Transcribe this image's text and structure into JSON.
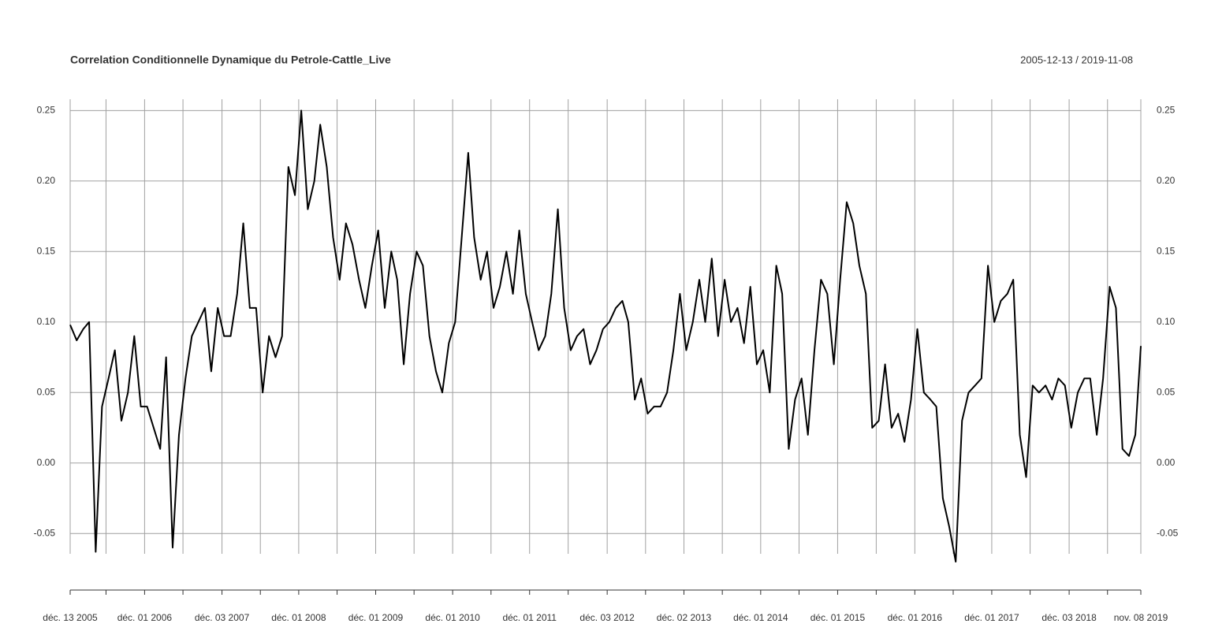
{
  "chart_data": {
    "type": "line",
    "title": "Correlation Conditionnelle Dynamique du Petrole-Cattle_Live",
    "subtitle": "2005-12-13 / 2019-11-08",
    "color": "#000000",
    "grid": true,
    "xlim": [
      "2005-12-13",
      "2019-11-08"
    ],
    "ylim": [
      -0.075,
      0.258
    ],
    "yticks": [
      -0.05,
      {
        "value": 0,
        "label": "0.00"
      },
      0.05,
      {
        "value": 0.1,
        "label": "0.10"
      },
      0.15,
      {
        "value": 0.2,
        "label": "0.20"
      },
      0.25
    ],
    "xticks": [
      {
        "value": "2005-12-13",
        "label": "déc. 13 2005"
      },
      {
        "value": "2006-12-01",
        "label": "déc. 01 2006"
      },
      {
        "value": "2007-12-03",
        "label": "déc. 03 2007"
      },
      {
        "value": "2008-12-01",
        "label": "déc. 01 2008"
      },
      {
        "value": "2009-12-01",
        "label": "déc. 01 2009"
      },
      {
        "value": "2010-12-01",
        "label": "déc. 01 2010"
      },
      {
        "value": "2011-12-01",
        "label": "déc. 01 2011"
      },
      {
        "value": "2012-12-03",
        "label": "déc. 03 2012"
      },
      {
        "value": "2013-12-02",
        "label": "déc. 02 2013"
      },
      {
        "value": "2014-12-01",
        "label": "déc. 01 2014"
      },
      {
        "value": "2015-12-01",
        "label": "déc. 01 2015"
      },
      {
        "value": "2016-12-01",
        "label": "déc. 01 2016"
      },
      {
        "value": "2017-12-01",
        "label": "déc. 01 2017"
      },
      {
        "value": "2018-12-03",
        "label": "déc. 03 2018"
      },
      {
        "value": "2019-11-08",
        "label": "nov. 08 2019"
      }
    ],
    "xticks_minor": [
      "2006-06-01",
      "2007-06-01",
      "2008-06-02",
      "2009-06-01",
      "2010-06-01",
      "2011-06-01",
      "2012-06-01",
      "2013-06-03",
      "2014-06-02",
      "2015-06-01",
      "2016-06-01",
      "2017-06-01",
      "2018-06-01",
      "2019-06-03"
    ],
    "x": [
      "2005-12-13",
      "2006-01-13",
      "2006-02-13",
      "2006-03-13",
      "2006-04-13",
      "2006-05-13",
      "2006-06-13",
      "2006-07-13",
      "2006-08-13",
      "2006-09-13",
      "2006-10-13",
      "2006-11-13",
      "2006-12-13",
      "2007-01-13",
      "2007-02-13",
      "2007-03-13",
      "2007-04-13",
      "2007-05-13",
      "2007-06-13",
      "2007-07-13",
      "2007-08-13",
      "2007-09-13",
      "2007-10-13",
      "2007-11-13",
      "2007-12-13",
      "2008-01-13",
      "2008-02-13",
      "2008-03-13",
      "2008-04-13",
      "2008-05-13",
      "2008-06-13",
      "2008-07-13",
      "2008-08-13",
      "2008-09-13",
      "2008-10-13",
      "2008-11-13",
      "2008-12-13",
      "2009-01-13",
      "2009-02-13",
      "2009-03-13",
      "2009-04-13",
      "2009-05-13",
      "2009-06-13",
      "2009-07-13",
      "2009-08-13",
      "2009-09-13",
      "2009-10-13",
      "2009-11-13",
      "2009-12-13",
      "2010-01-13",
      "2010-02-13",
      "2010-03-13",
      "2010-04-13",
      "2010-05-13",
      "2010-06-13",
      "2010-07-13",
      "2010-08-13",
      "2010-09-13",
      "2010-10-13",
      "2010-11-13",
      "2010-12-13",
      "2011-01-13",
      "2011-02-13",
      "2011-03-13",
      "2011-04-13",
      "2011-05-13",
      "2011-06-13",
      "2011-07-13",
      "2011-08-13",
      "2011-09-13",
      "2011-10-13",
      "2011-11-13",
      "2011-12-13",
      "2012-01-13",
      "2012-02-13",
      "2012-03-13",
      "2012-04-13",
      "2012-05-13",
      "2012-06-13",
      "2012-07-13",
      "2012-08-13",
      "2012-09-13",
      "2012-10-13",
      "2012-11-13",
      "2012-12-13",
      "2013-01-13",
      "2013-02-13",
      "2013-03-13",
      "2013-04-13",
      "2013-05-13",
      "2013-06-13",
      "2013-07-13",
      "2013-08-13",
      "2013-09-13",
      "2013-10-13",
      "2013-11-13",
      "2013-12-13",
      "2014-01-13",
      "2014-02-13",
      "2014-03-13",
      "2014-04-13",
      "2014-05-13",
      "2014-06-13",
      "2014-07-13",
      "2014-08-13",
      "2014-09-13",
      "2014-10-13",
      "2014-11-13",
      "2014-12-13",
      "2015-01-13",
      "2015-02-13",
      "2015-03-13",
      "2015-04-13",
      "2015-05-13",
      "2015-06-13",
      "2015-07-13",
      "2015-08-13",
      "2015-09-13",
      "2015-10-13",
      "2015-11-13",
      "2015-12-13",
      "2016-01-13",
      "2016-02-13",
      "2016-03-13",
      "2016-04-13",
      "2016-05-13",
      "2016-06-13",
      "2016-07-13",
      "2016-08-13",
      "2016-09-13",
      "2016-10-13",
      "2016-11-13",
      "2016-12-13",
      "2017-01-13",
      "2017-02-13",
      "2017-03-13",
      "2017-04-13",
      "2017-05-13",
      "2017-06-13",
      "2017-07-13",
      "2017-08-13",
      "2017-09-13",
      "2017-10-13",
      "2017-11-13",
      "2017-12-13",
      "2018-01-13",
      "2018-02-13",
      "2018-03-13",
      "2018-04-13",
      "2018-05-13",
      "2018-06-13",
      "2018-07-13",
      "2018-08-13",
      "2018-09-13",
      "2018-10-13",
      "2018-11-13",
      "2018-12-13",
      "2019-01-13",
      "2019-02-13",
      "2019-03-13",
      "2019-04-13",
      "2019-05-13",
      "2019-06-13",
      "2019-07-13",
      "2019-08-13",
      "2019-09-13",
      "2019-10-13",
      "2019-11-08"
    ],
    "values": [
      0.098,
      0.087,
      0.095,
      0.1,
      -0.063,
      0.04,
      0.06,
      0.08,
      0.03,
      0.05,
      0.09,
      0.04,
      0.04,
      0.025,
      0.01,
      0.075,
      -0.06,
      0.02,
      0.06,
      0.09,
      0.1,
      0.11,
      0.065,
      0.11,
      0.09,
      0.09,
      0.12,
      0.17,
      0.11,
      0.11,
      0.05,
      0.09,
      0.075,
      0.09,
      0.21,
      0.19,
      0.25,
      0.18,
      0.2,
      0.24,
      0.21,
      0.16,
      0.13,
      0.17,
      0.155,
      0.13,
      0.11,
      0.14,
      0.165,
      0.11,
      0.15,
      0.13,
      0.07,
      0.12,
      0.15,
      0.14,
      0.09,
      0.065,
      0.05,
      0.085,
      0.1,
      0.16,
      0.22,
      0.16,
      0.13,
      0.15,
      0.11,
      0.125,
      0.15,
      0.12,
      0.165,
      0.12,
      0.1,
      0.08,
      0.09,
      0.12,
      0.18,
      0.11,
      0.08,
      0.09,
      0.095,
      0.07,
      0.08,
      0.095,
      0.1,
      0.11,
      0.115,
      0.1,
      0.045,
      0.06,
      0.035,
      0.04,
      0.04,
      0.05,
      0.08,
      0.12,
      0.08,
      0.1,
      0.13,
      0.1,
      0.145,
      0.09,
      0.13,
      0.1,
      0.11,
      0.085,
      0.125,
      0.07,
      0.08,
      0.05,
      0.14,
      0.12,
      0.01,
      0.045,
      0.06,
      0.02,
      0.08,
      0.13,
      0.12,
      0.07,
      0.13,
      0.185,
      0.17,
      0.14,
      0.12,
      0.025,
      0.03,
      0.07,
      0.025,
      0.035,
      0.015,
      0.045,
      0.095,
      0.05,
      0.045,
      0.04,
      -0.025,
      -0.045,
      -0.07,
      0.03,
      0.05,
      0.055,
      0.06,
      0.14,
      0.1,
      0.115,
      0.12,
      0.13,
      0.02,
      -0.01,
      0.055,
      0.05,
      0.055,
      0.045,
      0.06,
      0.055,
      0.025,
      0.05,
      0.06,
      0.06,
      0.02,
      0.06,
      0.125,
      0.11,
      0.01,
      0.005,
      0.02,
      0.083
    ]
  }
}
